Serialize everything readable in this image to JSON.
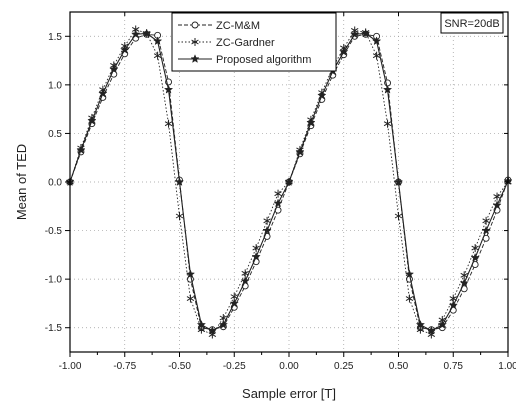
{
  "chart_data": {
    "type": "line",
    "xlabel": "Sample error [T]",
    "ylabel": "Mean of TED",
    "xlim": [
      -1.0,
      1.0
    ],
    "ylim": [
      -1.75,
      1.75
    ],
    "x_ticks": [
      -1.0,
      -0.75,
      -0.5,
      -0.25,
      0.0,
      0.25,
      0.5,
      0.75,
      1.0
    ],
    "x_tick_labels": [
      "-1.00",
      "-0.75",
      "-0.50",
      "-0.25",
      "0.00",
      "0.25",
      "0.50",
      "0.75",
      "1.00"
    ],
    "y_ticks": [
      -1.5,
      -1.0,
      -0.5,
      0.0,
      0.5,
      1.0,
      1.5
    ],
    "y_tick_labels": [
      "-1.5",
      "-1.0",
      "-0.5",
      "0.0",
      "0.5",
      "1.0",
      "1.5"
    ],
    "grid": true,
    "legend_position": "top-left",
    "annotation": "SNR=20dB",
    "series": [
      {
        "name": "ZC-M&M",
        "marker": "circle",
        "line": "dashed",
        "x": [
          -1.0,
          -0.95,
          -0.9,
          -0.85,
          -0.8,
          -0.75,
          -0.7,
          -0.65,
          -0.6,
          -0.55,
          -0.5,
          -0.45,
          -0.4,
          -0.35,
          -0.3,
          -0.25,
          -0.2,
          -0.15,
          -0.1,
          -0.05,
          0.0,
          0.05,
          0.1,
          0.15,
          0.2,
          0.25,
          0.3,
          0.35,
          0.4,
          0.45,
          0.5,
          0.55,
          0.6,
          0.65,
          0.7,
          0.75,
          0.8,
          0.85,
          0.9,
          0.95,
          1.0
        ],
        "y": [
          0.0,
          0.31,
          0.6,
          0.87,
          1.11,
          1.32,
          1.48,
          1.52,
          1.51,
          1.03,
          0.02,
          -1.0,
          -1.5,
          -1.52,
          -1.49,
          -1.29,
          -1.07,
          -0.82,
          -0.56,
          -0.29,
          0.0,
          0.29,
          0.58,
          0.85,
          1.1,
          1.31,
          1.5,
          1.52,
          1.5,
          1.02,
          0.0,
          -1.0,
          -1.5,
          -1.52,
          -1.5,
          -1.32,
          -1.1,
          -0.85,
          -0.58,
          -0.29,
          0.02
        ]
      },
      {
        "name": "ZC-Gardner",
        "marker": "asterisk",
        "line": "dotted",
        "x": [
          -1.0,
          -0.95,
          -0.9,
          -0.85,
          -0.8,
          -0.75,
          -0.7,
          -0.65,
          -0.6,
          -0.55,
          -0.5,
          -0.45,
          -0.4,
          -0.35,
          -0.3,
          -0.25,
          -0.2,
          -0.15,
          -0.1,
          -0.05,
          0.0,
          0.05,
          0.1,
          0.15,
          0.2,
          0.25,
          0.3,
          0.35,
          0.4,
          0.45,
          0.5,
          0.55,
          0.6,
          0.65,
          0.7,
          0.75,
          0.8,
          0.85,
          0.9,
          0.95,
          1.0
        ],
        "y": [
          0.0,
          0.35,
          0.66,
          0.95,
          1.2,
          1.4,
          1.57,
          1.53,
          1.3,
          0.6,
          -0.35,
          -1.2,
          -1.52,
          -1.57,
          -1.4,
          -1.18,
          -0.94,
          -0.68,
          -0.4,
          -0.12,
          0.0,
          0.33,
          0.64,
          0.92,
          1.18,
          1.38,
          1.56,
          1.54,
          1.3,
          0.6,
          -0.35,
          -1.2,
          -1.52,
          -1.57,
          -1.42,
          -1.2,
          -0.96,
          -0.68,
          -0.4,
          -0.15,
          0.0
        ]
      },
      {
        "name": "Proposed algorithm",
        "marker": "star",
        "line": "solid",
        "x": [
          -1.0,
          -0.95,
          -0.9,
          -0.85,
          -0.8,
          -0.75,
          -0.7,
          -0.65,
          -0.6,
          -0.55,
          -0.5,
          -0.45,
          -0.4,
          -0.35,
          -0.3,
          -0.25,
          -0.2,
          -0.15,
          -0.1,
          -0.05,
          0.0,
          0.05,
          0.1,
          0.15,
          0.2,
          0.25,
          0.3,
          0.35,
          0.4,
          0.45,
          0.5,
          0.55,
          0.6,
          0.65,
          0.7,
          0.75,
          0.8,
          0.85,
          0.9,
          0.95,
          1.0
        ],
        "y": [
          0.0,
          0.33,
          0.63,
          0.91,
          1.16,
          1.36,
          1.52,
          1.53,
          1.45,
          0.95,
          0.0,
          -0.95,
          -1.47,
          -1.53,
          -1.47,
          -1.25,
          -1.02,
          -0.77,
          -0.5,
          -0.22,
          0.0,
          0.31,
          0.61,
          0.89,
          1.14,
          1.34,
          1.52,
          1.53,
          1.45,
          0.95,
          0.0,
          -0.95,
          -1.47,
          -1.53,
          -1.47,
          -1.27,
          -1.04,
          -0.78,
          -0.5,
          -0.24,
          0.01
        ]
      }
    ]
  }
}
